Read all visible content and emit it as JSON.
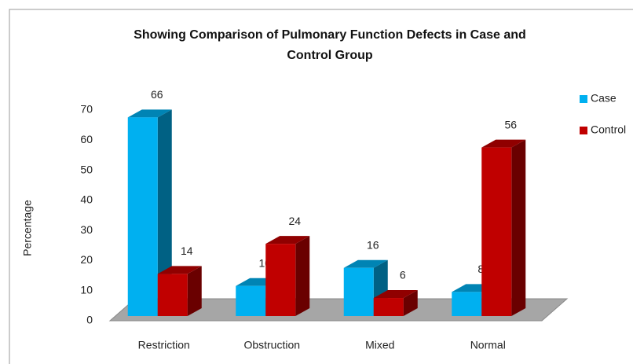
{
  "chart_data": {
    "type": "bar3d",
    "title": "Showing Comparison of Pulmonary Function Defects in Case and Control Group",
    "y_label": "Percentage",
    "categories": [
      "Restriction",
      "Obstruction",
      "Mixed",
      "Normal"
    ],
    "series": [
      {
        "name": "Case",
        "color": "#00b0f0",
        "values": [
          66,
          10,
          16,
          8
        ]
      },
      {
        "name": "Control",
        "color": "#c00000",
        "values": [
          14,
          24,
          6,
          56
        ]
      }
    ],
    "ylim": [
      0,
      70
    ],
    "yticks": [
      0,
      10,
      20,
      30,
      40,
      50,
      60,
      70
    ],
    "legend": "right"
  }
}
